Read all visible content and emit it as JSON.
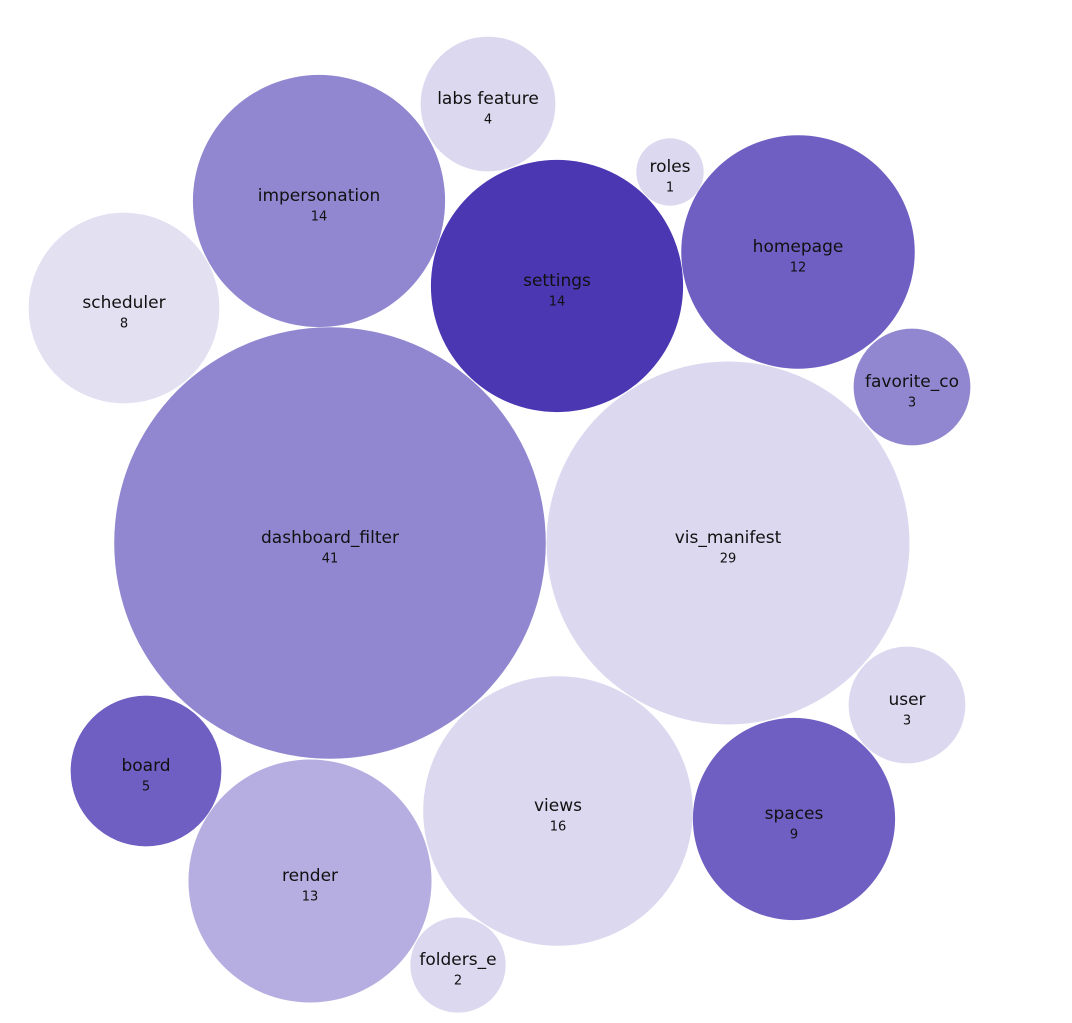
{
  "chart_data": {
    "type": "bubble",
    "categories": [
      "labs feature",
      "impersonation",
      "roles",
      "settings",
      "homepage",
      "scheduler",
      "favorite_co",
      "dashboard_filter",
      "vis_manifest",
      "user",
      "board",
      "views",
      "spaces",
      "render",
      "folders_e"
    ],
    "values": [
      4,
      14,
      1,
      14,
      12,
      8,
      3,
      41,
      29,
      3,
      5,
      16,
      9,
      13,
      2
    ],
    "colors": [
      "#dcd8ef",
      "#9187d0",
      "#dcd8ef",
      "#4c37b3",
      "#6f5fc2",
      "#e3e0f2",
      "#9187d0",
      "#9187d0",
      "#dcd8ef",
      "#dcd8ef",
      "#6f5fc2",
      "#dcd8ef",
      "#6f5fc2",
      "#b6aee0",
      "#dcd8ef"
    ]
  }
}
